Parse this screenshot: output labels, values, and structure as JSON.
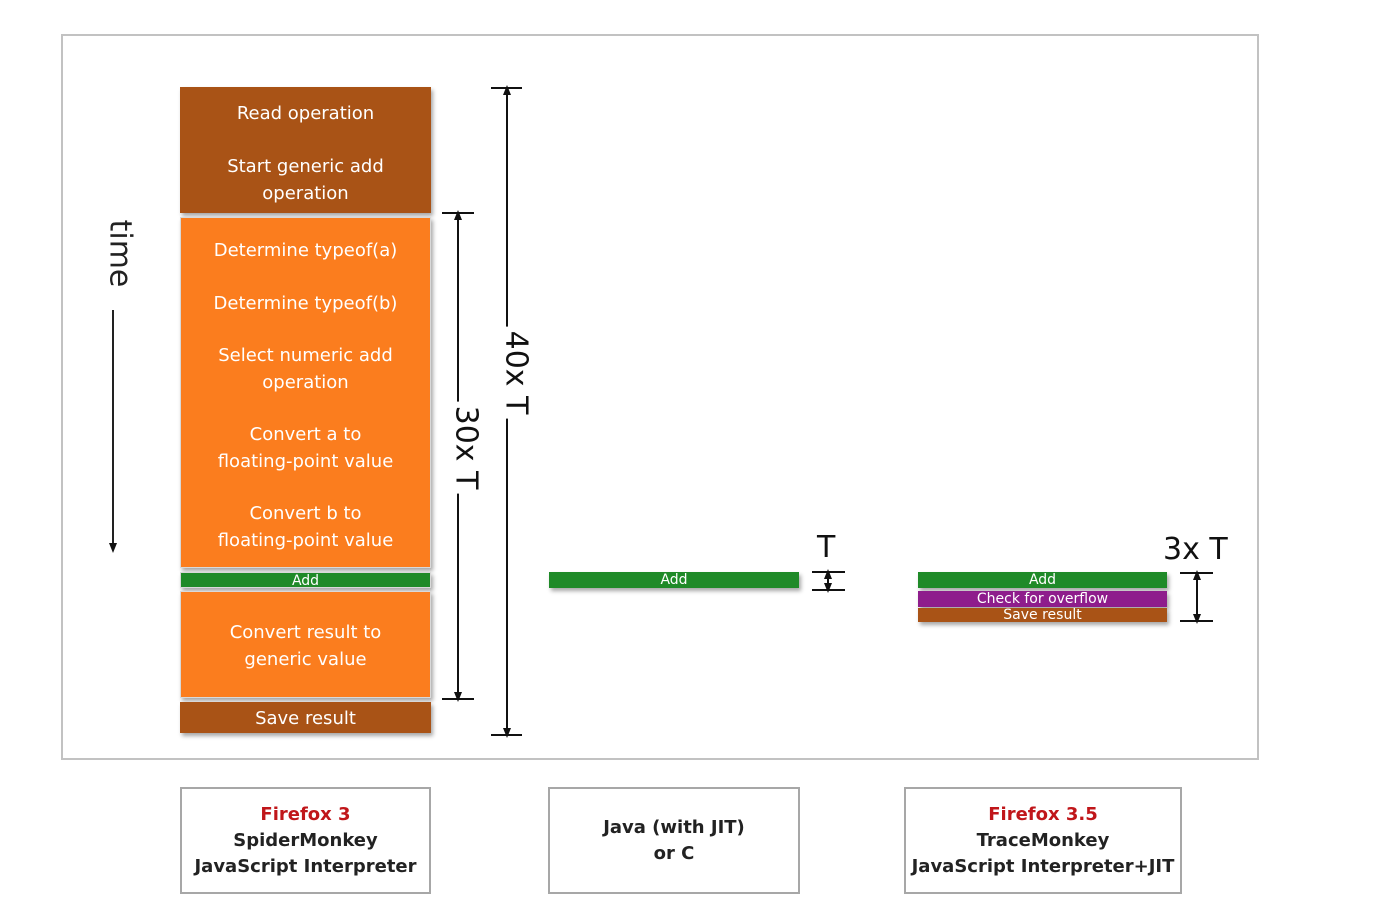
{
  "time_label": "time",
  "interpreter": {
    "blocks": [
      {
        "lines": [
          "Read operation",
          "Start generic add",
          "operation"
        ]
      },
      {
        "lines": [
          "Determine typeof(a)",
          "Determine typeof(b)",
          "Select numeric add",
          "operation",
          "Convert a to",
          "floating-point value",
          "Convert b to",
          "floating-point value"
        ]
      },
      {
        "label": "Add"
      },
      {
        "lines": [
          "Convert result to",
          "generic value"
        ]
      },
      {
        "label": "Save result"
      }
    ],
    "dim_30": "30x T",
    "dim_40": "40x T"
  },
  "java": {
    "add_label": "Add",
    "dim": "T"
  },
  "tracemonkey": {
    "add_label": "Add",
    "overflow_label": "Check for overflow",
    "save_label": "Save result",
    "dim": "3x T"
  },
  "captions": [
    {
      "accent": "Firefox 3",
      "lines": [
        "SpiderMonkey",
        "JavaScript Interpreter"
      ]
    },
    {
      "accent": "",
      "lines": [
        "Java (with JIT)",
        "or C"
      ]
    },
    {
      "accent": "Firefox 3.5",
      "lines": [
        "TraceMonkey",
        "JavaScript Interpreter+JIT"
      ]
    }
  ],
  "colors": {
    "brown": "#a95316",
    "orange": "#fb7d1e",
    "green": "#1f8a28",
    "purple": "#8e1d8c",
    "accent_red": "#c0161a"
  }
}
